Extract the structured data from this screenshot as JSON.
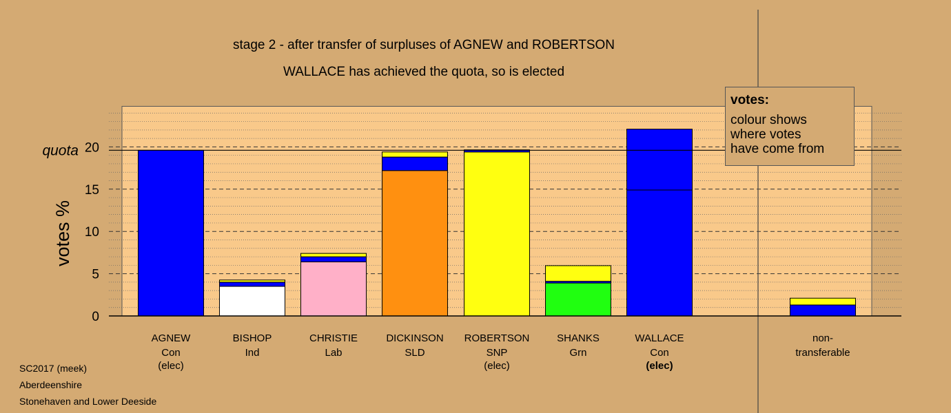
{
  "titles": {
    "line1": "stage 2 - after transfer of surpluses of AGNEW and ROBERTSON",
    "line2": "WALLACE has achieved the quota, so is elected"
  },
  "footer": {
    "line1": "SC2017 (meek)",
    "line2": "Aberdeenshire",
    "line3": "Stonehaven and Lower Deeside"
  },
  "legend": {
    "title": "votes:",
    "line1": "colour shows",
    "line2": "where votes",
    "line3": "have come from"
  },
  "colors": {
    "background": "#d4aa73",
    "plot_area": "#f9c98a",
    "Con": "#0000ff",
    "Ind": "#ffffff",
    "Lab": "#ffb0c8",
    "SLD": "#ff9010",
    "SNP": "#ffff10",
    "Grn": "#20ff10"
  },
  "chart_data": {
    "type": "bar",
    "stacked": true,
    "ylabel": "votes %",
    "yticks": [
      0,
      5,
      10,
      15,
      20
    ],
    "ylim": [
      0,
      24.8
    ],
    "quota": 19.6,
    "quota_label": "quota",
    "grid": true,
    "categories": [
      {
        "name": "AGNEW",
        "party": "Con",
        "note": "(elec)",
        "note_bold": false
      },
      {
        "name": "BISHOP",
        "party": "Ind",
        "note": "",
        "note_bold": false
      },
      {
        "name": "CHRISTIE",
        "party": "Lab",
        "note": "",
        "note_bold": false
      },
      {
        "name": "DICKINSON",
        "party": "SLD",
        "note": "",
        "note_bold": false
      },
      {
        "name": "ROBERTSON",
        "party": "SNP",
        "note": "(elec)",
        "note_bold": false
      },
      {
        "name": "SHANKS",
        "party": "Grn",
        "note": "",
        "note_bold": false
      },
      {
        "name": "WALLACE",
        "party": "Con",
        "note": "(elec)",
        "note_bold": true
      }
    ],
    "stacks": [
      [
        {
          "source": "Con",
          "value": 19.6
        }
      ],
      [
        {
          "source": "Ind",
          "value": 3.5
        },
        {
          "source": "Con",
          "value": 0.5
        },
        {
          "source": "SNP",
          "value": 0.25
        }
      ],
      [
        {
          "source": "Lab",
          "value": 6.4
        },
        {
          "source": "Con",
          "value": 0.6
        },
        {
          "source": "SNP",
          "value": 0.4
        }
      ],
      [
        {
          "source": "SLD",
          "value": 17.2
        },
        {
          "source": "Con",
          "value": 1.6
        },
        {
          "source": "SNP",
          "value": 0.6
        }
      ],
      [
        {
          "source": "SNP",
          "value": 19.4
        },
        {
          "source": "Con",
          "value": 0.25
        }
      ],
      [
        {
          "source": "Grn",
          "value": 3.9
        },
        {
          "source": "Con",
          "value": 0.2
        },
        {
          "source": "SNP",
          "value": 1.85
        }
      ],
      [
        {
          "source": "Con",
          "value": 14.9
        },
        {
          "source": "Con",
          "value": 7.2
        }
      ]
    ],
    "nontransferable": {
      "label_line1": "non-",
      "label_line2": "transferable",
      "stack": [
        {
          "source": "Con",
          "value": 1.3
        },
        {
          "source": "SNP",
          "value": 0.8
        }
      ]
    }
  }
}
